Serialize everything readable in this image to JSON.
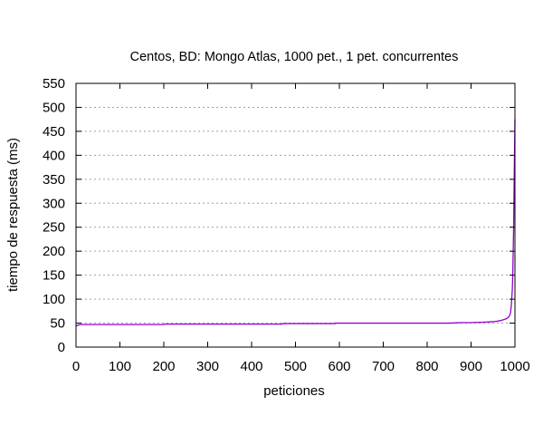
{
  "chart_data": {
    "type": "line",
    "title": "Centos, BD: Mongo Atlas,  1000 pet., 1 pet. concurrentes",
    "xlabel": "peticiones",
    "ylabel": "tiempo de respuesta (ms)",
    "xlim": [
      0,
      1000
    ],
    "ylim": [
      0,
      550
    ],
    "xticks": [
      0,
      100,
      200,
      300,
      400,
      500,
      600,
      700,
      800,
      900,
      1000
    ],
    "yticks": [
      0,
      50,
      100,
      150,
      200,
      250,
      300,
      350,
      400,
      450,
      500,
      550
    ],
    "grid": {
      "x": false,
      "y": true
    },
    "legend": "none",
    "series": [
      {
        "color": "#9400d3",
        "x": [
          1,
          5,
          10,
          50,
          100,
          150,
          200,
          201,
          300,
          400,
          470,
          471,
          500,
          590,
          591,
          700,
          800,
          850,
          880,
          900,
          930,
          950,
          960,
          970,
          980,
          985,
          988,
          990,
          992,
          994,
          995,
          996,
          997,
          998,
          999,
          1000
        ],
        "y": [
          44,
          46,
          47,
          47,
          47,
          47,
          47,
          48,
          48,
          48,
          48,
          49,
          49,
          49,
          50,
          50,
          50,
          50,
          51,
          51,
          52,
          53,
          54,
          56,
          59,
          62,
          66,
          72,
          90,
          120,
          150,
          200,
          250,
          330,
          400,
          475
        ]
      }
    ]
  }
}
